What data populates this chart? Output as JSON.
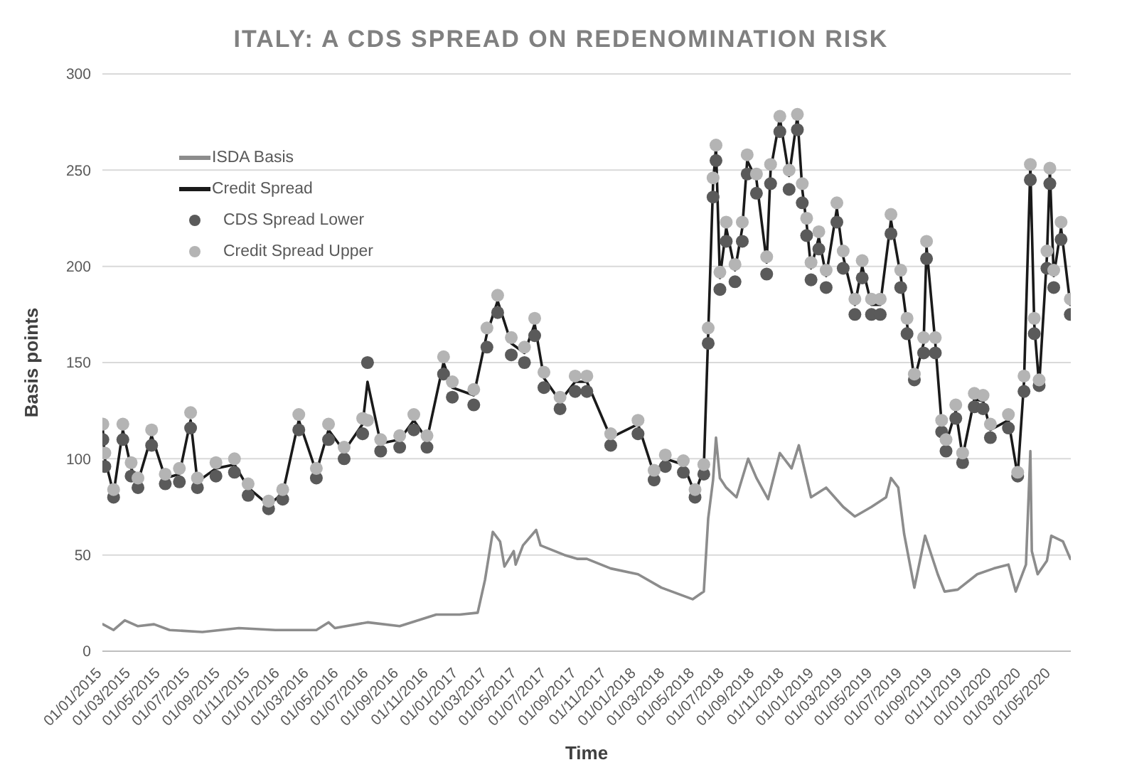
{
  "chart_data": {
    "type": "line",
    "title": "ITALY: A CDS SPREAD ON REDENOMINATION RISK",
    "xlabel": "Time",
    "ylabel": "Basis points",
    "xlim": [
      "2015-01-01",
      "2020-06-10"
    ],
    "xticks": [
      {
        "value": "2015-01-01",
        "label": "01/01/2015"
      },
      {
        "value": "2015-03-01",
        "label": "01/03/2015"
      },
      {
        "value": "2015-05-01",
        "label": "01/05/2015"
      },
      {
        "value": "2015-07-01",
        "label": "01/07/2015"
      },
      {
        "value": "2015-09-01",
        "label": "01/09/2015"
      },
      {
        "value": "2015-11-01",
        "label": "01/11/2015"
      },
      {
        "value": "2016-01-01",
        "label": "01/01/2016"
      },
      {
        "value": "2016-03-01",
        "label": "01/03/2016"
      },
      {
        "value": "2016-05-01",
        "label": "01/05/2016"
      },
      {
        "value": "2016-07-01",
        "label": "01/07/2016"
      },
      {
        "value": "2016-09-01",
        "label": "01/09/2016"
      },
      {
        "value": "2016-11-01",
        "label": "01/11/2016"
      },
      {
        "value": "2017-01-01",
        "label": "01/01/2017"
      },
      {
        "value": "2017-03-01",
        "label": "01/03/2017"
      },
      {
        "value": "2017-05-01",
        "label": "01/05/2017"
      },
      {
        "value": "2017-07-01",
        "label": "01/07/2017"
      },
      {
        "value": "2017-09-01",
        "label": "01/09/2017"
      },
      {
        "value": "2017-11-01",
        "label": "01/11/2017"
      },
      {
        "value": "2018-01-01",
        "label": "01/01/2018"
      },
      {
        "value": "2018-03-01",
        "label": "01/03/2018"
      },
      {
        "value": "2018-05-01",
        "label": "01/05/2018"
      },
      {
        "value": "2018-07-01",
        "label": "01/07/2018"
      },
      {
        "value": "2018-09-01",
        "label": "01/09/2018"
      },
      {
        "value": "2018-11-01",
        "label": "01/11/2018"
      },
      {
        "value": "2019-01-01",
        "label": "01/01/2019"
      },
      {
        "value": "2019-03-01",
        "label": "01/03/2019"
      },
      {
        "value": "2019-05-01",
        "label": "01/05/2019"
      },
      {
        "value": "2019-07-01",
        "label": "01/07/2019"
      },
      {
        "value": "2019-09-01",
        "label": "01/09/2019"
      },
      {
        "value": "2019-11-01",
        "label": "01/11/2019"
      },
      {
        "value": "2020-01-01",
        "label": "01/01/2020"
      },
      {
        "value": "2020-03-01",
        "label": "01/03/2020"
      },
      {
        "value": "2020-05-01",
        "label": "01/05/2020"
      }
    ],
    "ylim": [
      0,
      300
    ],
    "yticks": [
      0,
      50,
      100,
      150,
      200,
      250,
      300
    ],
    "grid": "y",
    "legend": "top left",
    "series": [
      {
        "name": "ISDA Basis",
        "marker": "none",
        "color": "#8c8c8c",
        "x": [
          "2015-01-02",
          "2015-01-24",
          "2015-02-16",
          "2015-03-15",
          "2015-04-17",
          "2015-05-19",
          "2015-07-25",
          "2015-10-08",
          "2015-12-22",
          "2016-03-15",
          "2016-04-09",
          "2016-04-22",
          "2016-06-28",
          "2016-09-02",
          "2016-11-16",
          "2017-01-03",
          "2017-02-09",
          "2017-02-24",
          "2017-03-12",
          "2017-03-27",
          "2017-04-05",
          "2017-04-24",
          "2017-04-28",
          "2017-05-13",
          "2017-06-09",
          "2017-06-18",
          "2017-08-06",
          "2017-09-01",
          "2017-09-21",
          "2017-11-09",
          "2018-01-04",
          "2018-02-21",
          "2018-04-26",
          "2018-05-19",
          "2018-05-28",
          "2018-06-07",
          "2018-06-13",
          "2018-06-21",
          "2018-07-04",
          "2018-07-25",
          "2018-08-18",
          "2018-09-04",
          "2018-09-28",
          "2018-10-22",
          "2018-11-15",
          "2018-11-30",
          "2018-12-25",
          "2019-01-25",
          "2019-03-01",
          "2019-03-25",
          "2019-04-28",
          "2019-05-28",
          "2019-06-07",
          "2019-06-22",
          "2019-07-04",
          "2019-07-25",
          "2019-08-16",
          "2019-09-11",
          "2019-09-25",
          "2019-10-22",
          "2019-12-01",
          "2020-01-04",
          "2020-02-03",
          "2020-02-18",
          "2020-03-10",
          "2020-03-19",
          "2020-03-22",
          "2020-04-03",
          "2020-04-22",
          "2020-05-01",
          "2020-05-25",
          "2020-06-09"
        ],
        "values": [
          14,
          11,
          16,
          13,
          14,
          11,
          10,
          12,
          11,
          11,
          15,
          12,
          15,
          13,
          19,
          19,
          20,
          37,
          62,
          57,
          44,
          52,
          45,
          55,
          63,
          55,
          50,
          48,
          48,
          43,
          40,
          33,
          27,
          31,
          69,
          89,
          111,
          90,
          85,
          80,
          100,
          90,
          79,
          103,
          95,
          107,
          80,
          85,
          75,
          70,
          75,
          80,
          90,
          85,
          61,
          33,
          60,
          40,
          31,
          32,
          40,
          43,
          45,
          31,
          45,
          104,
          52,
          40,
          47,
          60,
          57,
          48
        ]
      },
      {
        "name": "Credit Spread",
        "marker": "none",
        "color": "#1a1a1a",
        "x": [
          "2015-01-02",
          "2015-01-06",
          "2015-01-24",
          "2015-02-12",
          "2015-03-01",
          "2015-03-15",
          "2015-04-12",
          "2015-05-10",
          "2015-06-08",
          "2015-07-01",
          "2015-07-15",
          "2015-08-22",
          "2015-09-29",
          "2015-10-27",
          "2015-12-08",
          "2016-01-06",
          "2016-02-08",
          "2016-03-15",
          "2016-04-09",
          "2016-05-11",
          "2016-06-18",
          "2016-06-28",
          "2016-07-25",
          "2016-09-02",
          "2016-10-01",
          "2016-10-28",
          "2016-12-01",
          "2016-12-19",
          "2017-02-01",
          "2017-02-28",
          "2017-03-22",
          "2017-04-19",
          "2017-05-16",
          "2017-06-06",
          "2017-06-25",
          "2017-07-28",
          "2017-08-28",
          "2017-09-21",
          "2017-11-09",
          "2018-01-04",
          "2018-02-06",
          "2018-03-01",
          "2018-04-07",
          "2018-05-01",
          "2018-05-19",
          "2018-05-28",
          "2018-06-07",
          "2018-06-13",
          "2018-06-21",
          "2018-07-04",
          "2018-07-22",
          "2018-08-06",
          "2018-08-16",
          "2018-09-04",
          "2018-09-25",
          "2018-10-03",
          "2018-10-22",
          "2018-11-10",
          "2018-11-27",
          "2018-12-07",
          "2018-12-16",
          "2018-12-25",
          "2019-01-10",
          "2019-01-25",
          "2019-02-16",
          "2019-03-01",
          "2019-03-25",
          "2019-04-09",
          "2019-04-28",
          "2019-05-16",
          "2019-06-07",
          "2019-06-27",
          "2019-07-10",
          "2019-07-25",
          "2019-08-13",
          "2019-08-19",
          "2019-09-06",
          "2019-09-19",
          "2019-09-28",
          "2019-10-18",
          "2019-11-01",
          "2019-11-25",
          "2019-12-13",
          "2019-12-28",
          "2020-02-03",
          "2020-02-22",
          "2020-03-06",
          "2020-03-19",
          "2020-03-27",
          "2020-04-06",
          "2020-04-22",
          "2020-04-28",
          "2020-05-06",
          "2020-05-21",
          "2020-06-09"
        ],
        "values": [
          115,
          100,
          82,
          115,
          95,
          88,
          112,
          90,
          92,
          120,
          88,
          95,
          97,
          85,
          76,
          82,
          120,
          93,
          115,
          104,
          118,
          140,
          108,
          110,
          120,
          110,
          150,
          137,
          133,
          165,
          182,
          160,
          155,
          170,
          142,
          130,
          140,
          140,
          111,
          118,
          92,
          100,
          97,
          82,
          95,
          165,
          243,
          262,
          194,
          220,
          198,
          220,
          255,
          245,
          202,
          250,
          277,
          247,
          278,
          240,
          222,
          199,
          215,
          195,
          230,
          205,
          180,
          200,
          180,
          180,
          224,
          195,
          170,
          141,
          160,
          210,
          160,
          118,
          108,
          125,
          101,
          131,
          130,
          115,
          120,
          91,
          140,
          252,
          170,
          138,
          205,
          250,
          195,
          220,
          180
        ]
      },
      {
        "name": "CDS Spread Lower",
        "type": "scatter",
        "marker": "circle",
        "color": "#5a5a5a",
        "x": [
          "2015-01-02",
          "2015-01-06",
          "2015-01-24",
          "2015-02-12",
          "2015-03-01",
          "2015-03-15",
          "2015-04-12",
          "2015-05-10",
          "2015-06-08",
          "2015-07-01",
          "2015-07-15",
          "2015-08-22",
          "2015-09-29",
          "2015-10-27",
          "2015-12-08",
          "2016-01-06",
          "2016-02-08",
          "2016-03-15",
          "2016-04-09",
          "2016-05-11",
          "2016-06-18",
          "2016-06-28",
          "2016-07-25",
          "2016-09-02",
          "2016-10-01",
          "2016-10-28",
          "2016-12-01",
          "2016-12-19",
          "2017-02-01",
          "2017-02-28",
          "2017-03-22",
          "2017-04-19",
          "2017-05-16",
          "2017-06-06",
          "2017-06-25",
          "2017-07-28",
          "2017-08-28",
          "2017-09-21",
          "2017-11-09",
          "2018-01-04",
          "2018-02-06",
          "2018-03-01",
          "2018-04-07",
          "2018-05-01",
          "2018-05-19",
          "2018-05-28",
          "2018-06-07",
          "2018-06-13",
          "2018-06-21",
          "2018-07-04",
          "2018-07-22",
          "2018-08-06",
          "2018-08-16",
          "2018-09-04",
          "2018-09-25",
          "2018-10-03",
          "2018-10-22",
          "2018-11-10",
          "2018-11-27",
          "2018-12-07",
          "2018-12-16",
          "2018-12-25",
          "2019-01-10",
          "2019-01-25",
          "2019-02-16",
          "2019-03-01",
          "2019-03-25",
          "2019-04-09",
          "2019-04-28",
          "2019-05-16",
          "2019-06-07",
          "2019-06-27",
          "2019-07-10",
          "2019-07-25",
          "2019-08-13",
          "2019-08-19",
          "2019-09-06",
          "2019-09-19",
          "2019-09-28",
          "2019-10-18",
          "2019-11-01",
          "2019-11-25",
          "2019-12-13",
          "2019-12-28",
          "2020-02-03",
          "2020-02-22",
          "2020-03-06",
          "2020-03-19",
          "2020-03-27",
          "2020-04-06",
          "2020-04-22",
          "2020-04-28",
          "2020-05-06",
          "2020-05-21",
          "2020-06-09"
        ],
        "values": [
          110,
          96,
          80,
          110,
          91,
          85,
          107,
          87,
          88,
          116,
          85,
          91,
          93,
          81,
          74,
          79,
          115,
          90,
          110,
          100,
          113,
          150,
          104,
          106,
          115,
          106,
          144,
          132,
          128,
          158,
          176,
          154,
          150,
          164,
          137,
          126,
          135,
          135,
          107,
          113,
          89,
          96,
          93,
          80,
          92,
          160,
          236,
          255,
          188,
          213,
          192,
          213,
          248,
          238,
          196,
          243,
          270,
          240,
          271,
          233,
          216,
          193,
          209,
          189,
          223,
          199,
          175,
          194,
          175,
          175,
          217,
          189,
          165,
          141,
          155,
          204,
          155,
          114,
          104,
          121,
          98,
          127,
          126,
          111,
          116,
          91,
          135,
          245,
          165,
          138,
          199,
          243,
          189,
          214,
          175
        ]
      },
      {
        "name": "Credit Spread Upper",
        "type": "scatter",
        "marker": "circle",
        "color": "#b4b4b4",
        "x": [
          "2015-01-02",
          "2015-01-06",
          "2015-01-24",
          "2015-02-12",
          "2015-03-01",
          "2015-03-15",
          "2015-04-12",
          "2015-05-10",
          "2015-06-08",
          "2015-07-01",
          "2015-07-15",
          "2015-08-22",
          "2015-09-29",
          "2015-10-27",
          "2015-12-08",
          "2016-01-06",
          "2016-02-08",
          "2016-03-15",
          "2016-04-09",
          "2016-05-11",
          "2016-06-18",
          "2016-06-28",
          "2016-07-25",
          "2016-09-02",
          "2016-10-01",
          "2016-10-28",
          "2016-12-01",
          "2016-12-19",
          "2017-02-01",
          "2017-02-28",
          "2017-03-22",
          "2017-04-19",
          "2017-05-16",
          "2017-06-06",
          "2017-06-25",
          "2017-07-28",
          "2017-08-28",
          "2017-09-21",
          "2017-11-09",
          "2018-01-04",
          "2018-02-06",
          "2018-03-01",
          "2018-04-07",
          "2018-05-01",
          "2018-05-19",
          "2018-05-28",
          "2018-06-07",
          "2018-06-13",
          "2018-06-21",
          "2018-07-04",
          "2018-07-22",
          "2018-08-06",
          "2018-08-16",
          "2018-09-04",
          "2018-09-25",
          "2018-10-03",
          "2018-10-22",
          "2018-11-10",
          "2018-11-27",
          "2018-12-07",
          "2018-12-16",
          "2018-12-25",
          "2019-01-10",
          "2019-01-25",
          "2019-02-16",
          "2019-03-01",
          "2019-03-25",
          "2019-04-09",
          "2019-04-28",
          "2019-05-16",
          "2019-06-07",
          "2019-06-27",
          "2019-07-10",
          "2019-07-25",
          "2019-08-13",
          "2019-08-19",
          "2019-09-06",
          "2019-09-19",
          "2019-09-28",
          "2019-10-18",
          "2019-11-01",
          "2019-11-25",
          "2019-12-13",
          "2019-12-28",
          "2020-02-03",
          "2020-02-22",
          "2020-03-06",
          "2020-03-19",
          "2020-03-27",
          "2020-04-06",
          "2020-04-22",
          "2020-04-28",
          "2020-05-06",
          "2020-05-21",
          "2020-06-09"
        ],
        "values": [
          118,
          103,
          84,
          118,
          98,
          90,
          115,
          92,
          95,
          124,
          90,
          98,
          100,
          87,
          78,
          84,
          123,
          95,
          118,
          106,
          121,
          120,
          110,
          112,
          123,
          112,
          153,
          140,
          136,
          168,
          185,
          163,
          158,
          173,
          145,
          132,
          143,
          143,
          113,
          120,
          94,
          102,
          99,
          84,
          97,
          168,
          246,
          263,
          197,
          223,
          201,
          223,
          258,
          248,
          205,
          253,
          278,
          250,
          279,
          243,
          225,
          202,
          218,
          198,
          233,
          208,
          183,
          203,
          183,
          183,
          227,
          198,
          173,
          144,
          163,
          213,
          163,
          120,
          110,
          128,
          103,
          134,
          133,
          118,
          123,
          93,
          143,
          253,
          173,
          141,
          208,
          251,
          198,
          223,
          183
        ]
      }
    ]
  }
}
